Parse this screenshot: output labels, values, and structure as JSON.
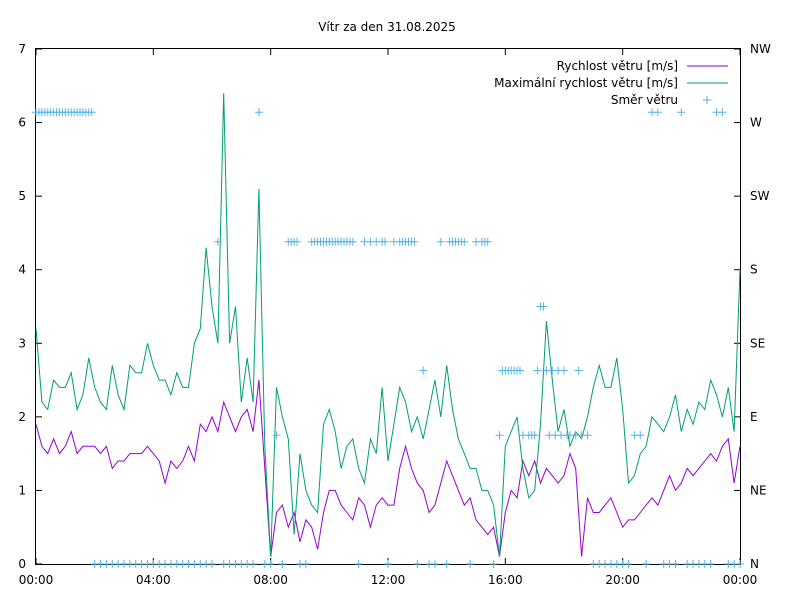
{
  "chart_data": {
    "type": "line",
    "title": "Vítr za den 31.08.2025",
    "xlabel": "",
    "ylabel": "",
    "x_tick_labels": [
      "00:00",
      "04:00",
      "08:00",
      "12:00",
      "16:00",
      "20:00",
      "00:00"
    ],
    "x_range_hours": [
      0,
      24
    ],
    "y_tick_labels": [
      "0",
      "1",
      "2",
      "3",
      "4",
      "5",
      "6",
      "7"
    ],
    "ylim": [
      0,
      7
    ],
    "y2_tick_labels": [
      "N",
      "NE",
      "E",
      "SE",
      "S",
      "SW",
      "W",
      "NW"
    ],
    "y2_range": [
      0,
      7
    ],
    "legend_position": "top-right",
    "grid": false,
    "series": [
      {
        "name": "Rychlost větru [m/s]",
        "color": "#9400d3",
        "style": "line",
        "x": [
          0.0,
          0.2,
          0.4,
          0.6,
          0.8,
          1.0,
          1.2,
          1.4,
          1.6,
          1.8,
          2.0,
          2.2,
          2.4,
          2.6,
          2.8,
          3.0,
          3.2,
          3.4,
          3.6,
          3.8,
          4.0,
          4.2,
          4.4,
          4.6,
          4.8,
          5.0,
          5.2,
          5.4,
          5.6,
          5.8,
          6.0,
          6.2,
          6.4,
          6.6,
          6.8,
          7.0,
          7.2,
          7.4,
          7.6,
          7.8,
          8.0,
          8.2,
          8.4,
          8.6,
          8.8,
          9.0,
          9.2,
          9.4,
          9.6,
          9.8,
          10.0,
          10.2,
          10.4,
          10.6,
          10.8,
          11.0,
          11.2,
          11.4,
          11.6,
          11.8,
          12.0,
          12.2,
          12.4,
          12.6,
          12.8,
          13.0,
          13.2,
          13.4,
          13.6,
          13.8,
          14.0,
          14.2,
          14.4,
          14.6,
          14.8,
          15.0,
          15.2,
          15.4,
          15.6,
          15.8,
          16.0,
          16.2,
          16.4,
          16.6,
          16.8,
          17.0,
          17.2,
          17.4,
          17.6,
          17.8,
          18.0,
          18.2,
          18.4,
          18.6,
          18.8,
          19.0,
          19.2,
          19.4,
          19.6,
          19.8,
          20.0,
          20.2,
          20.4,
          20.6,
          20.8,
          21.0,
          21.2,
          21.4,
          21.6,
          21.8,
          22.0,
          22.2,
          22.4,
          22.6,
          22.8,
          23.0,
          23.2,
          23.4,
          23.6,
          23.8,
          24.0
        ],
        "values": [
          1.9,
          1.6,
          1.5,
          1.7,
          1.5,
          1.6,
          1.8,
          1.5,
          1.6,
          1.6,
          1.6,
          1.5,
          1.6,
          1.3,
          1.4,
          1.4,
          1.5,
          1.5,
          1.5,
          1.6,
          1.5,
          1.4,
          1.1,
          1.4,
          1.3,
          1.4,
          1.6,
          1.4,
          1.9,
          1.8,
          2.0,
          1.8,
          2.2,
          2.0,
          1.8,
          2.0,
          2.1,
          1.8,
          2.5,
          1.3,
          0.1,
          0.7,
          0.8,
          0.5,
          0.7,
          0.3,
          0.6,
          0.5,
          0.2,
          0.7,
          1.0,
          1.0,
          0.8,
          0.7,
          0.6,
          0.9,
          0.8,
          0.5,
          0.8,
          0.9,
          0.8,
          0.8,
          1.3,
          1.6,
          1.3,
          1.1,
          1.0,
          0.7,
          0.8,
          1.1,
          1.4,
          1.2,
          1.0,
          0.8,
          0.9,
          0.6,
          0.5,
          0.4,
          0.5,
          0.1,
          0.7,
          1.0,
          0.9,
          1.4,
          1.2,
          1.4,
          1.1,
          1.3,
          1.2,
          1.1,
          1.2,
          1.5,
          1.3,
          0.1,
          0.9,
          0.7,
          0.7,
          0.8,
          0.9,
          0.7,
          0.5,
          0.6,
          0.6,
          0.7,
          0.8,
          0.9,
          0.8,
          1.0,
          1.2,
          1.0,
          1.1,
          1.3,
          1.2,
          1.3,
          1.4,
          1.5,
          1.4,
          1.6,
          1.7,
          1.1,
          1.6
        ]
      },
      {
        "name": "Maximální rychlost větru [m/s]",
        "color": "#009e73",
        "style": "line",
        "x": [
          0.0,
          0.2,
          0.4,
          0.6,
          0.8,
          1.0,
          1.2,
          1.4,
          1.6,
          1.8,
          2.0,
          2.2,
          2.4,
          2.6,
          2.8,
          3.0,
          3.2,
          3.4,
          3.6,
          3.8,
          4.0,
          4.2,
          4.4,
          4.6,
          4.8,
          5.0,
          5.2,
          5.4,
          5.6,
          5.8,
          6.0,
          6.2,
          6.4,
          6.6,
          6.8,
          7.0,
          7.2,
          7.4,
          7.6,
          7.8,
          8.0,
          8.2,
          8.4,
          8.6,
          8.8,
          9.0,
          9.2,
          9.4,
          9.6,
          9.8,
          10.0,
          10.2,
          10.4,
          10.6,
          10.8,
          11.0,
          11.2,
          11.4,
          11.6,
          11.8,
          12.0,
          12.2,
          12.4,
          12.6,
          12.8,
          13.0,
          13.2,
          13.4,
          13.6,
          13.8,
          14.0,
          14.2,
          14.4,
          14.6,
          14.8,
          15.0,
          15.2,
          15.4,
          15.6,
          15.8,
          16.0,
          16.2,
          16.4,
          16.6,
          16.8,
          17.0,
          17.2,
          17.4,
          17.6,
          17.8,
          18.0,
          18.2,
          18.4,
          18.6,
          18.8,
          19.0,
          19.2,
          19.4,
          19.6,
          19.8,
          20.0,
          20.2,
          20.4,
          20.6,
          20.8,
          21.0,
          21.2,
          21.4,
          21.6,
          21.8,
          22.0,
          22.2,
          22.4,
          22.6,
          22.8,
          23.0,
          23.2,
          23.4,
          23.6,
          23.8,
          24.0
        ],
        "values": [
          3.2,
          2.2,
          2.1,
          2.5,
          2.4,
          2.4,
          2.6,
          2.1,
          2.3,
          2.8,
          2.4,
          2.2,
          2.1,
          2.7,
          2.3,
          2.1,
          2.7,
          2.6,
          2.6,
          3.0,
          2.7,
          2.5,
          2.5,
          2.3,
          2.6,
          2.4,
          2.4,
          3.0,
          3.2,
          4.3,
          3.5,
          3.0,
          6.4,
          3.0,
          3.5,
          2.2,
          2.8,
          2.2,
          5.1,
          1.6,
          0.1,
          2.4,
          2.0,
          1.7,
          0.4,
          1.5,
          1.0,
          0.8,
          0.7,
          1.9,
          2.1,
          1.8,
          1.3,
          1.6,
          1.7,
          1.3,
          1.1,
          1.7,
          1.5,
          2.4,
          1.4,
          1.9,
          2.4,
          2.2,
          1.8,
          2.0,
          1.7,
          2.1,
          2.5,
          2.0,
          2.7,
          2.1,
          1.7,
          1.5,
          1.3,
          1.3,
          1.0,
          1.0,
          0.8,
          0.1,
          1.6,
          1.8,
          2.0,
          1.3,
          0.9,
          1.0,
          1.9,
          3.3,
          2.5,
          1.8,
          2.1,
          1.6,
          1.8,
          1.7,
          2.0,
          2.4,
          2.7,
          2.4,
          2.4,
          2.8,
          2.1,
          1.1,
          1.2,
          1.5,
          1.6,
          2.0,
          1.9,
          1.8,
          2.0,
          2.3,
          1.8,
          2.1,
          1.9,
          2.2,
          2.1,
          2.5,
          2.3,
          2.0,
          2.4,
          1.8,
          4.0
        ]
      },
      {
        "name": "Směr větru",
        "color": "#56b4e9",
        "style": "points",
        "x": [
          0.0,
          0.1,
          0.2,
          0.3,
          0.4,
          0.5,
          0.6,
          0.7,
          0.8,
          0.9,
          1.0,
          1.1,
          1.2,
          1.3,
          1.4,
          1.5,
          1.6,
          1.7,
          1.8,
          1.9,
          2.0,
          2.2,
          2.4,
          2.6,
          2.8,
          3.0,
          3.2,
          3.4,
          3.6,
          3.8,
          4.0,
          4.2,
          4.4,
          4.6,
          4.8,
          5.0,
          5.2,
          5.4,
          5.6,
          5.8,
          6.0,
          6.2,
          6.4,
          6.6,
          6.8,
          7.0,
          7.2,
          7.4,
          7.6,
          7.8,
          8.0,
          8.2,
          8.4,
          8.6,
          8.7,
          8.8,
          8.9,
          9.0,
          9.2,
          9.4,
          9.5,
          9.6,
          9.7,
          9.8,
          9.9,
          10.0,
          10.1,
          10.2,
          10.3,
          10.4,
          10.5,
          10.6,
          10.7,
          10.8,
          11.0,
          11.2,
          11.4,
          11.6,
          11.8,
          11.9,
          12.0,
          12.2,
          12.4,
          12.5,
          12.6,
          12.7,
          12.8,
          12.9,
          13.0,
          13.2,
          13.4,
          13.6,
          13.8,
          14.0,
          14.1,
          14.2,
          14.3,
          14.4,
          14.5,
          14.6,
          14.8,
          15.0,
          15.2,
          15.3,
          15.4,
          15.6,
          15.8,
          15.9,
          16.0,
          16.1,
          16.2,
          16.3,
          16.4,
          16.5,
          16.6,
          16.8,
          16.9,
          17.0,
          17.1,
          17.2,
          17.3,
          17.4,
          17.5,
          17.6,
          17.7,
          17.8,
          17.9,
          18.0,
          18.1,
          18.2,
          18.4,
          18.5,
          18.6,
          18.8,
          19.0,
          19.2,
          19.4,
          19.6,
          19.8,
          20.0,
          20.2,
          20.4,
          20.6,
          20.8,
          21.0,
          21.2,
          21.4,
          21.6,
          21.8,
          22.0,
          22.2,
          22.4,
          22.6,
          22.8,
          23.0,
          23.2,
          23.4,
          23.6,
          23.8,
          24.0
        ],
        "values": [
          6.14,
          6.14,
          6.14,
          6.14,
          6.14,
          6.14,
          6.14,
          6.14,
          6.14,
          6.14,
          6.14,
          6.14,
          6.14,
          6.14,
          6.14,
          6.14,
          6.14,
          6.14,
          6.14,
          6.14,
          0,
          0,
          0,
          0,
          0,
          0,
          0,
          0,
          0,
          0,
          0,
          0,
          0,
          0,
          0,
          0,
          0,
          0,
          0,
          0,
          0,
          4.38,
          0,
          0,
          0,
          0,
          0,
          0,
          6.14,
          0,
          0,
          1.75,
          0,
          4.38,
          4.38,
          4.38,
          4.38,
          0,
          0,
          4.38,
          4.38,
          4.38,
          4.38,
          4.38,
          4.38,
          4.38,
          4.38,
          4.38,
          4.38,
          4.38,
          4.38,
          4.38,
          4.38,
          4.38,
          0,
          4.38,
          4.38,
          4.38,
          4.38,
          4.38,
          0,
          4.38,
          4.38,
          4.38,
          4.38,
          4.38,
          4.38,
          4.38,
          0,
          2.63,
          0,
          0,
          4.38,
          0,
          4.38,
          4.38,
          4.38,
          4.38,
          4.38,
          4.38,
          0,
          4.38,
          4.38,
          4.38,
          4.38,
          0,
          1.75,
          2.63,
          2.63,
          2.63,
          2.63,
          2.63,
          2.63,
          2.63,
          1.75,
          1.75,
          1.75,
          1.75,
          2.63,
          3.5,
          3.5,
          2.63,
          1.75,
          2.63,
          1.75,
          2.63,
          1.75,
          2.63,
          1.75,
          1.75,
          1.75,
          2.63,
          1.75,
          1.75,
          0,
          0,
          0,
          0,
          0,
          0,
          0,
          1.75,
          1.75,
          0,
          6.14,
          6.14,
          0,
          0,
          0,
          6.14,
          0,
          0,
          0,
          0,
          0,
          6.14,
          6.14,
          0,
          0,
          0
        ]
      }
    ]
  }
}
